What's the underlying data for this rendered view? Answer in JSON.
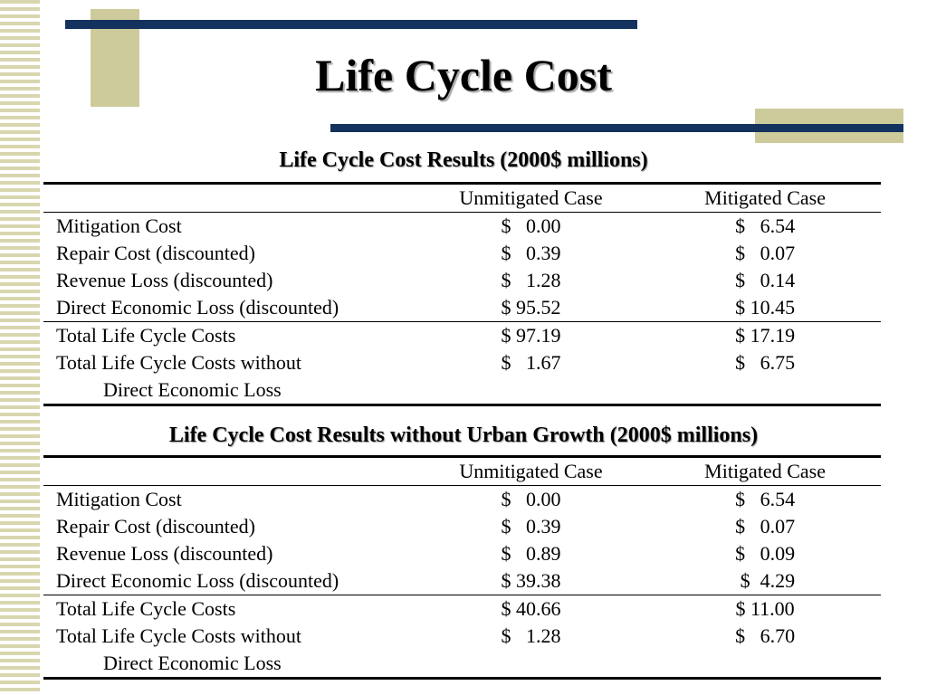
{
  "slide": {
    "title": "Life Cycle Cost"
  },
  "colors": {
    "navy": "#13335e",
    "tan": "#cdcb9b",
    "stripe": "#d8d6ae"
  },
  "table1": {
    "caption": "Life Cycle Cost Results (2000$ millions)",
    "columns": [
      "",
      "Unmitigated Case",
      "Mitigated Case"
    ],
    "rows": [
      {
        "label": "Mitigation Cost",
        "label2": "",
        "unmitigated": "$   0.00",
        "mitigated": "$   6.54"
      },
      {
        "label": "Repair Cost (discounted)",
        "label2": "",
        "unmitigated": "$   0.39",
        "mitigated": "$   0.07"
      },
      {
        "label": "Revenue Loss (discounted)",
        "label2": "",
        "unmitigated": "$   1.28",
        "mitigated": "$   0.14"
      },
      {
        "label": "Direct Economic Loss (discounted)",
        "label2": "",
        "unmitigated": "$ 95.52",
        "mitigated": "$ 10.45"
      },
      {
        "label": "Total Life Cycle Costs",
        "label2": "",
        "unmitigated": "$ 97.19",
        "mitigated": "$ 17.19"
      },
      {
        "label": "Total Life Cycle Costs without",
        "label2": "Direct Economic Loss",
        "unmitigated": "$   1.67",
        "mitigated": "$   6.75"
      }
    ]
  },
  "table2": {
    "caption": "Life Cycle Cost Results without Urban Growth (2000$ millions)",
    "columns": [
      "",
      "Unmitigated Case",
      "Mitigated Case"
    ],
    "rows": [
      {
        "label": "Mitigation Cost",
        "label2": "",
        "unmitigated": "$   0.00",
        "mitigated": "$   6.54"
      },
      {
        "label": "Repair Cost (discounted)",
        "label2": "",
        "unmitigated": "$   0.39",
        "mitigated": "$   0.07"
      },
      {
        "label": "Revenue Loss (discounted)",
        "label2": "",
        "unmitigated": "$   0.89",
        "mitigated": "$   0.09"
      },
      {
        "label": "Direct Economic Loss (discounted)",
        "label2": "",
        "unmitigated": "$ 39.38",
        "mitigated": " $  4.29"
      },
      {
        "label": "Total Life Cycle Costs",
        "label2": "",
        "unmitigated": "$ 40.66",
        "mitigated": "$ 11.00"
      },
      {
        "label": "Total Life Cycle Costs without",
        "label2": "Direct Economic Loss",
        "unmitigated": "$   1.28",
        "mitigated": "$   6.70"
      }
    ]
  }
}
